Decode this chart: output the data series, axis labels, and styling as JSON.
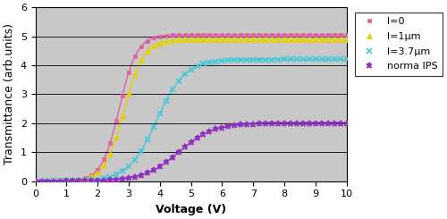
{
  "title": "",
  "xlabel": "Voltage (V)",
  "ylabel": "Transmittance (arb.units)",
  "xlim": [
    0,
    10
  ],
  "ylim": [
    0,
    6
  ],
  "xticks": [
    0,
    1,
    2,
    3,
    4,
    5,
    6,
    7,
    8,
    9,
    10
  ],
  "yticks": [
    0,
    1,
    2,
    3,
    4,
    5,
    6
  ],
  "bg_color": "#c8c8c8",
  "series": [
    {
      "label": "l=0",
      "color": "#e060a0",
      "marker": "s",
      "marker_size": 3.5,
      "v50": 2.7,
      "k": 3.5,
      "vmax": 5.05,
      "marker_interval": 0.2
    },
    {
      "label": "l=1μm",
      "color": "#e8d000",
      "marker": "^",
      "marker_size": 4.0,
      "v50": 2.85,
      "k": 3.2,
      "vmax": 4.9,
      "marker_interval": 0.2
    },
    {
      "label": "l=3.7μm",
      "color": "#40c8d8",
      "marker": "x",
      "marker_size": 4.5,
      "v50": 3.9,
      "k": 2.2,
      "vmax": 4.2,
      "marker_interval": 0.2
    },
    {
      "label": "norma IPS",
      "color": "#9030c0",
      "marker": "*",
      "marker_size": 5.0,
      "v50": 4.6,
      "k": 1.8,
      "vmax": 2.0,
      "marker_interval": 0.2
    }
  ],
  "legend_fontsize": 8,
  "axis_fontsize": 9,
  "tick_fontsize": 8
}
